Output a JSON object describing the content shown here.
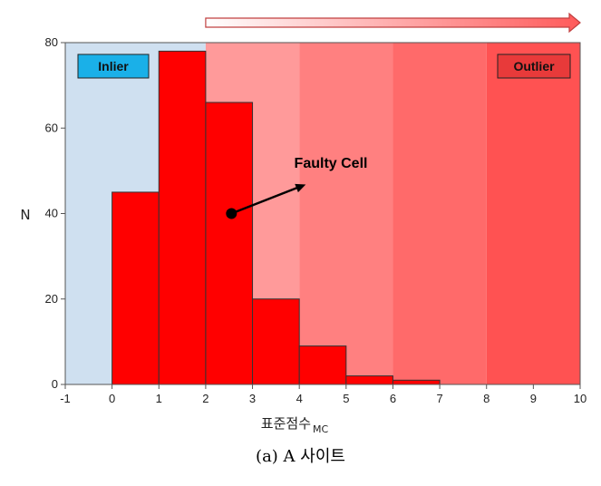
{
  "chart_data": {
    "type": "bar",
    "bins": [
      {
        "x0": 0,
        "x1": 1,
        "count": 45
      },
      {
        "x0": 1,
        "x1": 2,
        "count": 78
      },
      {
        "x0": 2,
        "x1": 3,
        "count": 66
      },
      {
        "x0": 3,
        "x1": 4,
        "count": 20
      },
      {
        "x0": 4,
        "x1": 5,
        "count": 9
      },
      {
        "x0": 5,
        "x1": 6,
        "count": 2
      },
      {
        "x0": 6,
        "x1": 7,
        "count": 1
      }
    ],
    "xlim": [
      -1,
      10
    ],
    "ylim": [
      0,
      80
    ],
    "xticks": [
      -1,
      0,
      1,
      2,
      3,
      4,
      5,
      6,
      7,
      8,
      9,
      10
    ],
    "yticks": [
      0,
      20,
      40,
      60,
      80
    ],
    "xlabel": "표준점수",
    "xlabel_subscript": "MC",
    "ylabel": "N",
    "bar_color": "#ff0000",
    "regions": [
      {
        "x0": -1,
        "x1": 2,
        "color": "#cfe0f0"
      },
      {
        "x0": 2,
        "x1": 4,
        "color": "#ff9a9a"
      },
      {
        "x0": 4,
        "x1": 6,
        "color": "#ff8080"
      },
      {
        "x0": 6,
        "x1": 8,
        "color": "#ff6a6a"
      },
      {
        "x0": 8,
        "x1": 10,
        "color": "#ff5252"
      }
    ],
    "region_labels": {
      "inlier": "Inlier",
      "outlier": "Outlier"
    },
    "inlier_color": "#1ab0e8",
    "outlier_color": "#e83a3a",
    "annotation": {
      "text": "Faulty Cell",
      "point": {
        "x": 2.55,
        "y": 40
      }
    }
  },
  "caption": "(a)  A  사이트"
}
